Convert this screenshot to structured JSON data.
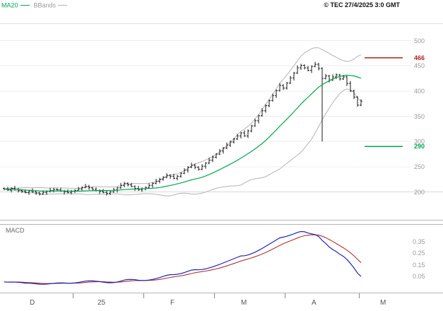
{
  "header": {
    "legend": {
      "ma20": "MA20",
      "bbands": "BBands"
    },
    "copyright": "© TEC 27/4/2025 3:0 GMT"
  },
  "colors": {
    "ma20": "#00a651",
    "bbands": "#b3b3b3",
    "bars": "#1a1a1a",
    "level_resistance": "#b22222",
    "level_support": "#00a651",
    "macd_line": "#2222bb",
    "macd_signal": "#aa3333",
    "axis_text": "#999999",
    "grid": "#ececec",
    "grid_strong": "#d9d9d9",
    "panel_border": "#b5b5b5",
    "tick": "#888888"
  },
  "chart_data": [
    {
      "type": "ohlc",
      "panel": "price",
      "title": "",
      "x_labels": [
        "D",
        "25",
        "F",
        "M",
        "A",
        "M"
      ],
      "y_ticks": [
        500,
        450,
        400,
        350,
        300,
        250,
        200
      ],
      "ylim": [
        142,
        535
      ],
      "grid": true,
      "levels": [
        {
          "value": 466,
          "label": "466",
          "role": "resistance"
        },
        {
          "value": 290,
          "label": "290",
          "role": "support"
        }
      ],
      "overlays": [
        {
          "name": "MA20",
          "window": 20
        },
        {
          "name": "BBands",
          "window": 20,
          "mult": 2
        }
      ],
      "open_first": 207,
      "spike": {
        "index": 90,
        "low": 300
      },
      "closes": [
        206,
        204,
        207,
        205,
        203,
        201,
        199,
        202,
        200,
        198,
        196,
        199,
        201,
        203,
        205,
        204,
        202,
        200,
        199,
        201,
        203,
        206,
        209,
        211,
        208,
        205,
        203,
        201,
        199,
        197,
        200,
        204,
        208,
        213,
        217,
        214,
        211,
        207,
        204,
        206,
        209,
        213,
        217,
        221,
        225,
        229,
        233,
        231,
        227,
        231,
        237,
        243,
        249,
        253,
        249,
        245,
        251,
        257,
        263,
        269,
        275,
        281,
        287,
        293,
        299,
        305,
        311,
        317,
        311,
        321,
        331,
        341,
        351,
        361,
        371,
        381,
        391,
        401,
        411,
        406,
        416,
        426,
        436,
        446,
        451,
        446,
        441,
        449,
        453,
        445,
        425,
        430,
        422,
        428,
        432,
        424,
        428,
        415,
        400,
        388,
        372,
        380
      ]
    },
    {
      "type": "line",
      "panel": "macd",
      "label": "MACD",
      "y_ticks": [
        {
          "label": "0.35",
          "value": 35
        },
        {
          "label": "0.25",
          "value": 25
        },
        {
          "label": "0.15",
          "value": 15
        },
        {
          "label": "0.05",
          "value": 5
        }
      ],
      "series": [
        {
          "name": "macd",
          "derived": "EMA12-EMA26 of closes"
        },
        {
          "name": "signal",
          "derived": "EMA9 of macd"
        }
      ]
    }
  ]
}
